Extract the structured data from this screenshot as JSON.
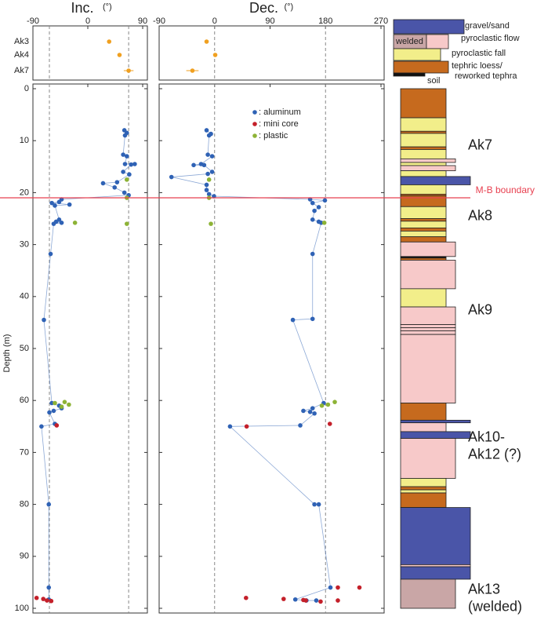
{
  "chart_data": [
    {
      "type": "scatter",
      "title": "Inc.",
      "unit": "(°)",
      "xlim": [
        -90,
        90
      ],
      "xticks": [
        -90,
        0,
        90
      ],
      "ylim": [
        0,
        100
      ],
      "yticks": [
        0,
        10,
        20,
        30,
        40,
        50,
        60,
        70,
        80,
        90,
        100
      ],
      "ylabel": "Depth (m)",
      "reference_lines": [
        -63,
        67
      ],
      "sites": [
        "Ak3",
        "Ak4",
        "Ak7"
      ],
      "site_values": [
        35,
        52,
        67
      ],
      "site_errors": [
        null,
        null,
        8
      ],
      "site_color": "#f0a020",
      "series": [
        {
          "color": "#2f62b5",
          "line": true,
          "y": [
            8,
            8.5,
            9,
            12.7,
            13,
            14.5,
            14.5,
            14.6,
            16,
            16.5,
            18,
            18.2,
            19,
            20,
            20.5,
            21.3,
            21.8,
            22,
            22.3,
            22.5,
            25.2,
            25.6,
            25.8,
            26,
            31.8,
            44.5,
            60.5,
            61,
            61.5,
            62,
            62.3,
            64.5,
            65,
            80,
            96,
            98.3
          ],
          "x": [
            60,
            64,
            61,
            58,
            64,
            61,
            77,
            71,
            58,
            68,
            48,
            25,
            44,
            60,
            67,
            -43,
            -47,
            -59,
            -30,
            -54,
            -47,
            -52,
            -43,
            -56,
            -61,
            -72,
            -59,
            -47,
            -43,
            -56,
            -63,
            -54,
            -76,
            -64,
            -64,
            -64
          ]
        },
        {
          "color": "#c4202a",
          "line": false,
          "y": [
            64.8,
            98,
            98.2,
            98.5,
            98.6
          ],
          "x": [
            -51,
            -84,
            -73,
            -67,
            -60
          ]
        },
        {
          "color": "#8db336",
          "line": false,
          "y": [
            17.5,
            21,
            25.8,
            26,
            60.3,
            60.5,
            60.8,
            61.2
          ],
          "x": [
            64,
            64,
            -21,
            64,
            -38,
            -54,
            -31,
            -43
          ]
        }
      ]
    },
    {
      "type": "scatter",
      "title": "Dec.",
      "unit": "(°)",
      "xlim": [
        -90,
        270
      ],
      "xticks": [
        -90,
        0,
        90,
        180,
        270
      ],
      "reference_lines": [
        0,
        180
      ],
      "site_values": [
        -13,
        1,
        -36
      ],
      "site_errors": [
        null,
        null,
        10
      ],
      "site_color": "#f0a020",
      "legend": true,
      "series": [
        {
          "name": ": aluminum",
          "color": "#2f62b5",
          "line": true,
          "y": [
            8,
            8.7,
            9,
            12.7,
            13,
            14.5,
            14.7,
            14.7,
            16,
            16.4,
            17,
            18.5,
            19.5,
            20.3,
            20.7,
            21.3,
            21.5,
            22,
            22.8,
            23.5,
            25.2,
            25.6,
            25.8,
            31.8,
            44.3,
            44.5,
            60.5,
            61.5,
            62,
            62.2,
            62.5,
            64.8,
            65,
            80,
            80,
            96,
            98.3,
            98.5,
            98.5
          ],
          "x": [
            -13,
            -6,
            -9,
            -11,
            -4,
            -22,
            -34,
            -17,
            -4,
            -11,
            -70,
            -13,
            -13,
            -9,
            -1,
            155,
            179,
            159,
            169,
            162,
            159,
            169,
            173,
            159,
            159,
            127,
            177,
            159,
            144,
            155,
            162,
            139,
            25,
            162,
            169,
            188,
            131,
            149,
            165
          ]
        },
        {
          "name": ": mini core",
          "color": "#c4202a",
          "line": false,
          "y": [
            64.5,
            65,
            96,
            96,
            98,
            98.2,
            98.4,
            98.5,
            98.5,
            98.7
          ],
          "x": [
            187,
            52,
            200,
            235,
            51,
            112,
            144,
            148,
            200,
            172
          ]
        },
        {
          "name": ": plastic",
          "color": "#8db336",
          "line": false,
          "y": [
            17.5,
            21,
            25.8,
            26,
            60.3,
            60.8,
            61
          ],
          "x": [
            -9,
            -9,
            178,
            -6,
            195,
            184,
            174
          ]
        }
      ]
    }
  ],
  "boundary": {
    "label": "M-B boundary",
    "depth": 21,
    "color": "#e84050"
  },
  "column": {
    "lithology": {
      "gravel": {
        "label": [
          "gravel/sand"
        ],
        "color": "#4a55a8"
      },
      "welded": {
        "label": [
          "welded"
        ],
        "color": "#c9a6a6"
      },
      "flow": {
        "label": [
          "pyroclastic flow"
        ],
        "color": "#f7c9c9"
      },
      "fall": {
        "label": [
          "pyroclastic fall"
        ],
        "color": "#f2ee8a"
      },
      "loess": {
        "label": [
          "tephric loess/",
          "reworked tephra"
        ],
        "color": "#c66a1e"
      },
      "soil": {
        "label": [
          "soil"
        ],
        "color": "#111111"
      }
    },
    "layers": [
      {
        "top": 0,
        "bottom": 5.6,
        "type": "loess",
        "width": "narrow"
      },
      {
        "top": 5.6,
        "bottom": 8.2,
        "type": "fall",
        "width": "narrow"
      },
      {
        "top": 8.2,
        "bottom": 8.6,
        "type": "loess",
        "width": "narrow"
      },
      {
        "top": 8.6,
        "bottom": 11.2,
        "type": "fall",
        "width": "narrow"
      },
      {
        "top": 11.2,
        "bottom": 11.7,
        "type": "loess",
        "width": "narrow"
      },
      {
        "top": 11.7,
        "bottom": 13.5,
        "type": "fall",
        "width": "narrow"
      },
      {
        "top": 13.5,
        "bottom": 14.2,
        "type": "flow",
        "width": "medium"
      },
      {
        "top": 14.2,
        "bottom": 14.8,
        "type": "fall",
        "width": "narrow"
      },
      {
        "top": 14.8,
        "bottom": 15.8,
        "type": "flow",
        "width": "medium"
      },
      {
        "top": 15.8,
        "bottom": 16.9,
        "type": "fall",
        "width": "narrow"
      },
      {
        "top": 16.9,
        "bottom": 18.5,
        "type": "gravel",
        "width": "wide"
      },
      {
        "top": 18.5,
        "bottom": 20.3,
        "type": "fall",
        "width": "narrow"
      },
      {
        "top": 20.3,
        "bottom": 20.6,
        "type": "loess",
        "width": "narrow"
      },
      {
        "top": 20.6,
        "bottom": 22.7,
        "type": "loess",
        "width": "narrow"
      },
      {
        "top": 22.7,
        "bottom": 25,
        "type": "fall",
        "width": "narrow"
      },
      {
        "top": 25,
        "bottom": 25.5,
        "type": "loess",
        "width": "narrow"
      },
      {
        "top": 25.5,
        "bottom": 26.8,
        "type": "fall",
        "width": "narrow"
      },
      {
        "top": 26.8,
        "bottom": 27.4,
        "type": "loess",
        "width": "narrow"
      },
      {
        "top": 27.4,
        "bottom": 28.5,
        "type": "fall",
        "width": "narrow"
      },
      {
        "top": 28.5,
        "bottom": 29.5,
        "type": "loess",
        "width": "narrow"
      },
      {
        "top": 29.5,
        "bottom": 32.3,
        "type": "flow",
        "width": "medium"
      },
      {
        "top": 32.3,
        "bottom": 32.6,
        "type": "soil",
        "width": "narrow"
      },
      {
        "top": 32.6,
        "bottom": 33,
        "type": "loess",
        "width": "narrow"
      },
      {
        "top": 33,
        "bottom": 38.5,
        "type": "flow",
        "width": "medium"
      },
      {
        "top": 38.5,
        "bottom": 42,
        "type": "fall",
        "width": "narrow"
      },
      {
        "top": 42,
        "bottom": 45.4,
        "type": "flow",
        "width": "medium"
      },
      {
        "top": 45.4,
        "bottom": 46,
        "type": "flow",
        "width": "medium"
      },
      {
        "top": 46,
        "bottom": 46.6,
        "type": "flow",
        "width": "medium"
      },
      {
        "top": 46.6,
        "bottom": 47.3,
        "type": "flow",
        "width": "medium"
      },
      {
        "top": 47.3,
        "bottom": 60.5,
        "type": "flow",
        "width": "medium"
      },
      {
        "top": 60.5,
        "bottom": 63.8,
        "type": "loess",
        "width": "narrow"
      },
      {
        "top": 63.8,
        "bottom": 64.3,
        "type": "gravel",
        "width": "wide"
      },
      {
        "top": 64.3,
        "bottom": 66,
        "type": "flow",
        "width": "narrow"
      },
      {
        "top": 66,
        "bottom": 67.3,
        "type": "gravel",
        "width": "wide"
      },
      {
        "top": 67.3,
        "bottom": 75,
        "type": "flow",
        "width": "medium"
      },
      {
        "top": 75,
        "bottom": 76.6,
        "type": "fall",
        "width": "narrow"
      },
      {
        "top": 76.6,
        "bottom": 77.2,
        "type": "loess",
        "width": "narrow"
      },
      {
        "top": 77.2,
        "bottom": 77.8,
        "type": "fall",
        "width": "narrow"
      },
      {
        "top": 77.8,
        "bottom": 80.6,
        "type": "loess",
        "width": "narrow"
      },
      {
        "top": 80.6,
        "bottom": 91.6,
        "type": "gravel",
        "width": "wide"
      },
      {
        "top": 91.6,
        "bottom": 92,
        "type": "flow",
        "width": "wide"
      },
      {
        "top": 92,
        "bottom": 94.4,
        "type": "gravel",
        "width": "wide"
      },
      {
        "top": 94.4,
        "bottom": 100,
        "type": "welded",
        "width": "medium"
      }
    ],
    "units": [
      {
        "label": [
          "Ak7"
        ],
        "depth": 11
      },
      {
        "label": [
          "Ak8"
        ],
        "depth": 24.6
      },
      {
        "label": [
          "Ak9"
        ],
        "depth": 42.7
      },
      {
        "label": [
          "Ak10-",
          "Ak12 (?)"
        ],
        "depth": 67.2
      },
      {
        "label": [
          "Ak13",
          "(welded)"
        ],
        "depth": 96.5
      }
    ]
  }
}
